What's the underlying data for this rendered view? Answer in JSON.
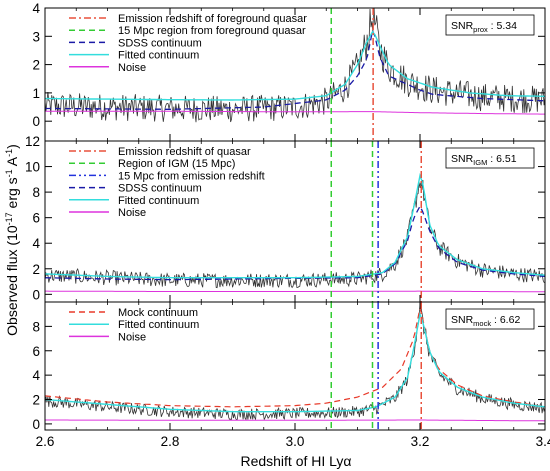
{
  "chart_data": {
    "type": "line",
    "ylabel": "Observed flux (10^-17 erg s^-1 A^-1)",
    "xlabel": "Redshift of HI Lyα",
    "xlim": [
      2.6,
      3.4
    ],
    "x_ticks": [
      "2.6",
      "2.8",
      "3.0",
      "3.2",
      "3.4"
    ],
    "x_tick_values": [
      2.6,
      2.8,
      3.0,
      3.2,
      3.4
    ],
    "colors": {
      "emission": "#e8503c",
      "region": "#33cc33",
      "blue_dashdot": "#2233dd",
      "sdss": "#1a1aa6",
      "fitted": "#33dddd",
      "noise": "#dd33dd",
      "observed": "#333333",
      "mock": "#e83a2a"
    },
    "panels": [
      {
        "id": "proximity",
        "ylim": [
          -0.7,
          4.0
        ],
        "y_ticks": [
          "0",
          "1",
          "2",
          "3",
          "4"
        ],
        "y_tick_values": [
          0,
          1,
          2,
          3,
          4
        ],
        "snr_label": {
          "base": "SNR",
          "sub": "prox",
          "value": ": 5.34"
        },
        "legend": [
          {
            "label": "Emission redshift of foreground quasar",
            "style": "dashdot",
            "color": "#e8503c"
          },
          {
            "label": "15 Mpc region from foreground quasar",
            "style": "dashed",
            "color": "#33cc33"
          },
          {
            "label": "SDSS continuum",
            "style": "dashed",
            "color": "#1a1aa6"
          },
          {
            "label": "Fitted continuum",
            "style": "solid",
            "color": "#33dddd"
          },
          {
            "label": "Noise",
            "style": "solid",
            "color": "#dd33dd"
          }
        ],
        "vlines": [
          {
            "x": 3.058,
            "style": "dashed",
            "color": "#33cc33"
          },
          {
            "x": 3.125,
            "style": "dashdot",
            "color": "#e8503c"
          }
        ],
        "fitted_continuum": {
          "x": [
            2.6,
            2.7,
            2.8,
            2.9,
            3.0,
            3.05,
            3.08,
            3.1,
            3.115,
            3.125,
            3.135,
            3.15,
            3.18,
            3.22,
            3.28,
            3.34,
            3.4
          ],
          "y": [
            0.8,
            0.78,
            0.76,
            0.75,
            0.78,
            0.9,
            1.3,
            2.0,
            2.8,
            3.2,
            2.7,
            2.0,
            1.5,
            1.2,
            1.0,
            0.9,
            0.88
          ]
        },
        "sdss_continuum": {
          "x": [
            2.6,
            2.8,
            2.95,
            3.05,
            3.08,
            3.1,
            3.115,
            3.125,
            3.135,
            3.15,
            3.18,
            3.2,
            3.22,
            3.3,
            3.4
          ],
          "y": [
            0.45,
            0.42,
            0.5,
            0.75,
            1.1,
            1.6,
            2.2,
            3.3,
            2.3,
            1.6,
            1.3,
            1.1,
            0.95,
            0.8,
            0.72
          ]
        },
        "noise": {
          "x": [
            2.6,
            2.8,
            3.0,
            3.12,
            3.2,
            3.3,
            3.4
          ],
          "y": [
            0.35,
            0.35,
            0.33,
            0.34,
            0.3,
            0.27,
            0.25
          ]
        },
        "observed_model": {
          "x": [
            2.6,
            2.7,
            2.8,
            2.9,
            3.0,
            3.05,
            3.08,
            3.1,
            3.115,
            3.125,
            3.135,
            3.15,
            3.18,
            3.22,
            3.3,
            3.4
          ],
          "y": [
            0.55,
            0.5,
            0.45,
            0.42,
            0.5,
            0.7,
            1.2,
            1.9,
            2.8,
            3.8,
            2.6,
            1.9,
            1.4,
            1.1,
            0.85,
            0.75
          ]
        },
        "observed_scatter": 0.45
      },
      {
        "id": "igm",
        "ylim": [
          -0.6,
          12.0
        ],
        "y_ticks": [
          "0",
          "2",
          "4",
          "6",
          "8",
          "10",
          "12"
        ],
        "y_tick_values": [
          0,
          2,
          4,
          6,
          8,
          10,
          12
        ],
        "snr_label": {
          "base": "SNR",
          "sub": "IGM",
          "value": ": 6.51"
        },
        "legend": [
          {
            "label": "Emission redshift of quasar",
            "style": "dashdot",
            "color": "#e8503c"
          },
          {
            "label": "Region of IGM (15 Mpc)",
            "style": "dashed",
            "color": "#33cc33"
          },
          {
            "label": "15 Mpc from emission redshift",
            "style": "dashdotdot",
            "color": "#2233dd"
          },
          {
            "label": "SDSS continuum",
            "style": "dashed",
            "color": "#1a1aa6"
          },
          {
            "label": "Fitted continuum",
            "style": "solid",
            "color": "#33dddd"
          },
          {
            "label": "Noise",
            "style": "solid",
            "color": "#dd33dd"
          }
        ],
        "vlines": [
          {
            "x": 3.058,
            "style": "dashed",
            "color": "#33cc33"
          },
          {
            "x": 3.124,
            "style": "dashed",
            "color": "#33cc33"
          },
          {
            "x": 3.133,
            "style": "dashdotdot",
            "color": "#2233dd"
          },
          {
            "x": 3.202,
            "style": "dashdot",
            "color": "#e8503c"
          }
        ],
        "fitted_continuum": {
          "x": [
            2.6,
            2.7,
            2.8,
            2.9,
            3.0,
            3.1,
            3.14,
            3.16,
            3.18,
            3.19,
            3.2,
            3.205,
            3.215,
            3.23,
            3.26,
            3.3,
            3.35,
            3.4
          ],
          "y": [
            1.6,
            1.4,
            1.3,
            1.3,
            1.3,
            1.4,
            1.7,
            2.5,
            4.5,
            6.8,
            9.3,
            8.6,
            5.5,
            3.8,
            2.7,
            2.0,
            1.7,
            1.5
          ]
        },
        "sdss_continuum": {
          "x": [
            2.6,
            2.7,
            2.8,
            2.9,
            3.0,
            3.1,
            3.14,
            3.16,
            3.18,
            3.19,
            3.2,
            3.205,
            3.215,
            3.23,
            3.26,
            3.3,
            3.35,
            3.4
          ],
          "y": [
            1.3,
            1.2,
            1.15,
            1.2,
            1.25,
            1.3,
            1.6,
            2.4,
            4.2,
            6.0,
            6.9,
            6.4,
            5.0,
            3.6,
            2.5,
            1.9,
            1.6,
            1.4
          ]
        },
        "noise": {
          "x": [
            2.6,
            2.8,
            3.0,
            3.2,
            3.3,
            3.4
          ],
          "y": [
            0.25,
            0.22,
            0.22,
            0.25,
            0.22,
            0.2
          ]
        },
        "observed_model": {
          "x": [
            2.6,
            2.7,
            2.8,
            2.9,
            3.0,
            3.1,
            3.14,
            3.16,
            3.18,
            3.19,
            3.2,
            3.205,
            3.215,
            3.23,
            3.26,
            3.3,
            3.35,
            3.4
          ],
          "y": [
            1.5,
            1.3,
            1.1,
            1.1,
            1.1,
            1.2,
            1.6,
            2.4,
            4.4,
            6.5,
            9.0,
            8.2,
            5.3,
            3.7,
            2.6,
            1.9,
            1.6,
            1.4
          ]
        },
        "observed_scatter": 0.55
      },
      {
        "id": "mock",
        "ylim": [
          -0.5,
          10.0
        ],
        "y_ticks": [
          "0",
          "2",
          "4",
          "6",
          "8"
        ],
        "y_tick_values": [
          0,
          2,
          4,
          6,
          8
        ],
        "snr_label": {
          "base": "SNR",
          "sub": "mock",
          "value": ": 6.62"
        },
        "legend": [
          {
            "label": "Mock continuum",
            "style": "dashed",
            "color": "#e83a2a"
          },
          {
            "label": "Fitted continuum",
            "style": "solid",
            "color": "#33dddd"
          },
          {
            "label": "Noise",
            "style": "solid",
            "color": "#dd33dd"
          }
        ],
        "vlines": [
          {
            "x": 3.058,
            "style": "dashed",
            "color": "#33cc33"
          },
          {
            "x": 3.124,
            "style": "dashed",
            "color": "#33cc33"
          },
          {
            "x": 3.133,
            "style": "dashdotdot",
            "color": "#2233dd"
          },
          {
            "x": 3.202,
            "style": "dashdot",
            "color": "#e8503c"
          }
        ],
        "mock_continuum": {
          "x": [
            2.6,
            2.7,
            2.8,
            2.9,
            3.0,
            3.05,
            3.1,
            3.14,
            3.17,
            3.19,
            3.2,
            3.205,
            3.215,
            3.23,
            3.26,
            3.3,
            3.35,
            3.4
          ],
          "y": [
            2.3,
            1.8,
            1.5,
            1.4,
            1.5,
            1.7,
            2.2,
            3.0,
            4.5,
            7.0,
            9.5,
            8.5,
            6.0,
            4.5,
            3.2,
            2.3,
            1.8,
            1.4
          ]
        },
        "fitted_continuum": {
          "x": [
            2.6,
            2.7,
            2.8,
            2.9,
            3.0,
            3.05,
            3.1,
            3.13,
            3.16,
            3.18,
            3.19,
            3.2,
            3.205,
            3.215,
            3.23,
            3.26,
            3.3,
            3.35,
            3.4
          ],
          "y": [
            2.0,
            1.6,
            1.2,
            1.0,
            1.0,
            1.05,
            1.1,
            1.4,
            2.2,
            3.8,
            6.2,
            9.0,
            8.3,
            6.0,
            4.3,
            3.0,
            2.2,
            1.7,
            1.4
          ]
        },
        "noise": {
          "x": [
            2.6,
            2.8,
            3.0,
            3.2,
            3.3,
            3.4
          ],
          "y": [
            0.32,
            0.3,
            0.3,
            0.32,
            0.28,
            0.25
          ]
        },
        "observed_model": {
          "x": [
            2.6,
            2.7,
            2.8,
            2.9,
            3.0,
            3.05,
            3.1,
            3.13,
            3.16,
            3.18,
            3.19,
            3.2,
            3.205,
            3.215,
            3.23,
            3.26,
            3.3,
            3.35,
            3.4
          ],
          "y": [
            1.9,
            1.4,
            1.0,
            0.8,
            0.85,
            0.9,
            1.0,
            1.3,
            2.1,
            3.7,
            6.0,
            9.5,
            8.2,
            5.8,
            4.1,
            2.9,
            2.1,
            1.6,
            1.3
          ]
        },
        "observed_scatter": 0.45
      }
    ]
  }
}
